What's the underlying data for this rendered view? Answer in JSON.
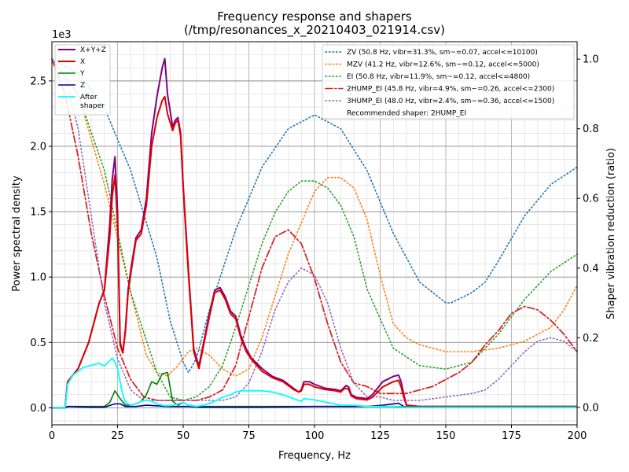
{
  "chart_data": {
    "type": "line",
    "title": "Frequency response and shapers",
    "subtitle": "(/tmp/resonances_x_20210403_021914.csv)",
    "xlabel": "Frequency, Hz",
    "ylabel": "Power spectral density",
    "y2label": "Shaper vibration reduction (ratio)",
    "y_offset_label": "1e3",
    "xlim": [
      0,
      200
    ],
    "ylim": [
      -0.13,
      2.8
    ],
    "y2lim": [
      -0.05,
      1.05
    ],
    "x_ticks": [
      "0",
      "25",
      "50",
      "75",
      "100",
      "125",
      "150",
      "175",
      "200"
    ],
    "y_ticks": [
      "0.0",
      "0.5",
      "1.0",
      "1.5",
      "2.0",
      "2.5"
    ],
    "y2_ticks": [
      "0.0",
      "0.2",
      "0.4",
      "0.6",
      "0.8",
      "1.0"
    ],
    "grid": true,
    "psd_series": [
      {
        "name": "X+Y+Z",
        "color": "#800080",
        "width": 2,
        "x": [
          0,
          5,
          6,
          10,
          14,
          18,
          20,
          22,
          23,
          24,
          25,
          26,
          27,
          28,
          29,
          30,
          32,
          34,
          36,
          38,
          40,
          42,
          43,
          44,
          46,
          47,
          48,
          49,
          50,
          52,
          54,
          56,
          58,
          60,
          62,
          64,
          66,
          68,
          70,
          72,
          74,
          76,
          80,
          84,
          88,
          90,
          92,
          94,
          95,
          96,
          98,
          100,
          104,
          108,
          110,
          111,
          112,
          113,
          114,
          116,
          120,
          122,
          124,
          126,
          128,
          130,
          132,
          133,
          134,
          135,
          140,
          150,
          160,
          170,
          180,
          190,
          200
        ],
        "y": [
          0,
          0,
          0.2,
          0.3,
          0.5,
          0.8,
          0.9,
          1.4,
          1.75,
          1.92,
          1.5,
          0.5,
          0.42,
          0.6,
          0.9,
          1.05,
          1.3,
          1.36,
          1.6,
          2.1,
          2.38,
          2.6,
          2.67,
          2.4,
          2.15,
          2.2,
          2.22,
          2.1,
          1.7,
          1.05,
          0.45,
          0.32,
          0.52,
          0.72,
          0.9,
          0.92,
          0.85,
          0.74,
          0.7,
          0.55,
          0.45,
          0.38,
          0.3,
          0.24,
          0.21,
          0.18,
          0.15,
          0.12,
          0.14,
          0.2,
          0.2,
          0.18,
          0.15,
          0.14,
          0.13,
          0.15,
          0.17,
          0.16,
          0.1,
          0.08,
          0.07,
          0.1,
          0.15,
          0.2,
          0.22,
          0.24,
          0.25,
          0.2,
          0.1,
          0.02,
          0.01,
          0.01,
          0.01,
          0.01,
          0.01,
          0.01,
          0.01
        ]
      },
      {
        "name": "X",
        "color": "#e00000",
        "width": 2,
        "x": [
          0,
          5,
          6,
          10,
          14,
          18,
          20,
          22,
          23,
          24,
          25,
          26,
          27,
          28,
          29,
          30,
          32,
          34,
          36,
          38,
          40,
          42,
          43,
          44,
          46,
          47,
          48,
          49,
          50,
          52,
          54,
          56,
          58,
          60,
          62,
          64,
          66,
          68,
          70,
          72,
          74,
          76,
          80,
          84,
          88,
          90,
          92,
          94,
          95,
          96,
          98,
          100,
          104,
          108,
          110,
          111,
          112,
          113,
          114,
          116,
          120,
          122,
          124,
          126,
          128,
          130,
          132,
          133,
          134,
          135,
          140,
          150,
          160,
          170,
          180,
          190,
          200
        ],
        "y": [
          0,
          0,
          0.2,
          0.3,
          0.5,
          0.8,
          0.9,
          1.3,
          1.62,
          1.78,
          1.4,
          0.48,
          0.42,
          0.58,
          0.88,
          1.02,
          1.28,
          1.33,
          1.55,
          2.0,
          2.22,
          2.35,
          2.38,
          2.25,
          2.12,
          2.18,
          2.2,
          2.08,
          1.68,
          1.02,
          0.43,
          0.3,
          0.5,
          0.7,
          0.88,
          0.9,
          0.83,
          0.72,
          0.68,
          0.53,
          0.43,
          0.37,
          0.28,
          0.23,
          0.2,
          0.17,
          0.14,
          0.12,
          0.13,
          0.18,
          0.18,
          0.16,
          0.14,
          0.13,
          0.12,
          0.14,
          0.15,
          0.14,
          0.09,
          0.07,
          0.06,
          0.08,
          0.12,
          0.16,
          0.18,
          0.2,
          0.21,
          0.16,
          0.08,
          0.02,
          0.01,
          0.01,
          0.01,
          0.01,
          0.01,
          0.01,
          0.01
        ]
      },
      {
        "name": "Y",
        "color": "#008000",
        "width": 1.6,
        "x": [
          0,
          5,
          6,
          20,
          22,
          24,
          26,
          28,
          30,
          32,
          34,
          36,
          38,
          40,
          42,
          44,
          46,
          48,
          50,
          52,
          55,
          60,
          80,
          100,
          120,
          130,
          140,
          200
        ],
        "y": [
          0,
          0,
          0.01,
          0.01,
          0.04,
          0.13,
          0.07,
          0.02,
          0.02,
          0.03,
          0.05,
          0.1,
          0.2,
          0.18,
          0.26,
          0.27,
          0.05,
          0.02,
          0.04,
          0.02,
          0.01,
          0.01,
          0.01,
          0.01,
          0.01,
          0.01,
          0.005,
          0.005
        ]
      },
      {
        "name": "Z",
        "color": "#00008b",
        "width": 1.6,
        "x": [
          0,
          5,
          6,
          15,
          20,
          24,
          26,
          28,
          32,
          36,
          44,
          52,
          56,
          60,
          80,
          100,
          110,
          120,
          126,
          130,
          132,
          134,
          136,
          150,
          200
        ],
        "y": [
          0,
          0,
          0.01,
          0.005,
          0.005,
          0.03,
          0.03,
          0.01,
          0.01,
          0.02,
          0.01,
          0.01,
          0.005,
          0.005,
          0.005,
          0.01,
          0.01,
          0.01,
          0.02,
          0.03,
          0.035,
          0.01,
          0.005,
          0.005,
          0.005
        ]
      },
      {
        "name": "After\nshaper",
        "color": "#00ffff",
        "width": 1.8,
        "x": [
          0,
          5,
          6,
          8,
          10,
          12,
          14,
          16,
          18,
          20,
          22,
          23,
          24,
          25,
          26,
          27,
          28,
          30,
          32,
          34,
          36,
          38,
          40,
          42,
          44,
          46,
          48,
          50,
          52,
          55,
          58,
          62,
          65,
          68,
          70,
          72,
          75,
          80,
          84,
          88,
          92,
          95,
          96,
          100,
          105,
          110,
          115,
          120,
          125,
          130,
          135,
          140,
          160,
          200
        ],
        "y": [
          0,
          0,
          0.18,
          0.25,
          0.28,
          0.31,
          0.32,
          0.33,
          0.34,
          0.32,
          0.36,
          0.38,
          0.35,
          0.3,
          0.2,
          0.1,
          0.04,
          0.02,
          0.03,
          0.05,
          0.06,
          0.05,
          0.03,
          0.02,
          0.015,
          0.02,
          0.03,
          0.04,
          0.02,
          0.01,
          0.02,
          0.05,
          0.08,
          0.1,
          0.12,
          0.13,
          0.13,
          0.13,
          0.12,
          0.1,
          0.07,
          0.05,
          0.07,
          0.06,
          0.04,
          0.02,
          0.02,
          0.01,
          0.01,
          0.01,
          0.005,
          0.005,
          0.005,
          0.005
        ]
      }
    ],
    "shaper_series": [
      {
        "name": "ZV (50.8 Hz, vibr=31.3%, sm~=0.07, accel<=10100)",
        "color": "#1f77b4",
        "style": "dotted",
        "x": [
          0,
          10,
          20,
          30,
          40,
          45,
          50,
          52,
          55,
          60,
          70,
          80,
          90,
          100,
          110,
          120,
          130,
          140,
          150,
          152,
          160,
          165,
          170,
          180,
          190,
          200
        ],
        "y": [
          1.0,
          0.96,
          0.86,
          0.68,
          0.43,
          0.25,
          0.13,
          0.1,
          0.14,
          0.28,
          0.51,
          0.69,
          0.8,
          0.84,
          0.8,
          0.68,
          0.5,
          0.36,
          0.3,
          0.3,
          0.33,
          0.36,
          0.42,
          0.55,
          0.64,
          0.69
        ]
      },
      {
        "name": "MZV (41.2 Hz, vibr=12.6%, sm~=0.12, accel<=5000)",
        "color": "#ff7f0e",
        "style": "dotted",
        "x": [
          0,
          10,
          20,
          30,
          36,
          40,
          44,
          48,
          52,
          55,
          60,
          65,
          70,
          75,
          80,
          90,
          100,
          105,
          110,
          115,
          120,
          125,
          130,
          135,
          140,
          150,
          160,
          170,
          180,
          190,
          195,
          200
        ],
        "y": [
          1.0,
          0.9,
          0.64,
          0.33,
          0.15,
          0.1,
          0.09,
          0.12,
          0.16,
          0.17,
          0.15,
          0.11,
          0.09,
          0.11,
          0.2,
          0.44,
          0.62,
          0.66,
          0.66,
          0.63,
          0.54,
          0.38,
          0.24,
          0.2,
          0.18,
          0.16,
          0.16,
          0.17,
          0.19,
          0.23,
          0.28,
          0.35
        ]
      },
      {
        "name": "EI (50.8 Hz, vibr=11.9%, sm~=0.12, accel<=4800)",
        "color": "#2ca02c",
        "style": "dotted",
        "x": [
          0,
          10,
          20,
          30,
          40,
          45,
          50,
          55,
          60,
          65,
          70,
          75,
          80,
          85,
          90,
          95,
          100,
          105,
          110,
          115,
          120,
          130,
          140,
          150,
          155,
          160,
          170,
          180,
          190,
          200
        ],
        "y": [
          1.0,
          0.9,
          0.68,
          0.33,
          0.1,
          0.03,
          0.02,
          0.03,
          0.06,
          0.12,
          0.23,
          0.35,
          0.47,
          0.56,
          0.62,
          0.65,
          0.65,
          0.63,
          0.58,
          0.49,
          0.34,
          0.17,
          0.12,
          0.11,
          0.12,
          0.13,
          0.21,
          0.31,
          0.39,
          0.44
        ]
      },
      {
        "name": "2HUMP_EI (45.8 Hz, vibr=4.9%, sm~=0.26, accel<=2300)",
        "color": "#d62728",
        "style": "dashdot",
        "x": [
          0,
          5,
          10,
          15,
          20,
          25,
          30,
          35,
          40,
          45,
          50,
          55,
          60,
          65,
          70,
          75,
          80,
          85,
          90,
          95,
          100,
          105,
          110,
          115,
          120,
          125,
          130,
          135,
          140,
          145,
          150,
          155,
          160,
          165,
          170,
          175,
          180,
          185,
          190,
          195,
          200
        ],
        "y": [
          1.0,
          0.9,
          0.72,
          0.5,
          0.32,
          0.17,
          0.08,
          0.03,
          0.02,
          0.02,
          0.02,
          0.02,
          0.03,
          0.05,
          0.12,
          0.26,
          0.4,
          0.49,
          0.51,
          0.47,
          0.37,
          0.24,
          0.13,
          0.07,
          0.06,
          0.04,
          0.04,
          0.04,
          0.05,
          0.06,
          0.08,
          0.1,
          0.13,
          0.18,
          0.22,
          0.27,
          0.29,
          0.28,
          0.25,
          0.21,
          0.16
        ]
      },
      {
        "name": "3HUMP_EI (48.0 Hz, vibr=2.4%, sm~=0.36, accel<=1500)",
        "color": "#9467bd",
        "style": "dotted",
        "x": [
          0,
          5,
          10,
          15,
          18,
          20,
          25,
          30,
          35,
          40,
          45,
          50,
          55,
          60,
          65,
          70,
          75,
          80,
          85,
          90,
          95,
          100,
          105,
          110,
          115,
          120,
          125,
          130,
          140,
          150,
          160,
          165,
          170,
          175,
          180,
          185,
          190,
          195,
          200
        ],
        "y": [
          1.0,
          0.95,
          0.8,
          0.55,
          0.4,
          0.3,
          0.14,
          0.05,
          0.02,
          0.02,
          0.02,
          0.02,
          0.02,
          0.02,
          0.02,
          0.03,
          0.07,
          0.16,
          0.28,
          0.36,
          0.4,
          0.38,
          0.3,
          0.17,
          0.07,
          0.03,
          0.03,
          0.02,
          0.02,
          0.03,
          0.04,
          0.05,
          0.08,
          0.12,
          0.16,
          0.19,
          0.2,
          0.19,
          0.16
        ]
      }
    ],
    "left_legend": {
      "placement": "top-left"
    },
    "right_legend": {
      "placement": "top-right",
      "recommended": "Recommended shaper: 2HUMP_EI"
    }
  }
}
